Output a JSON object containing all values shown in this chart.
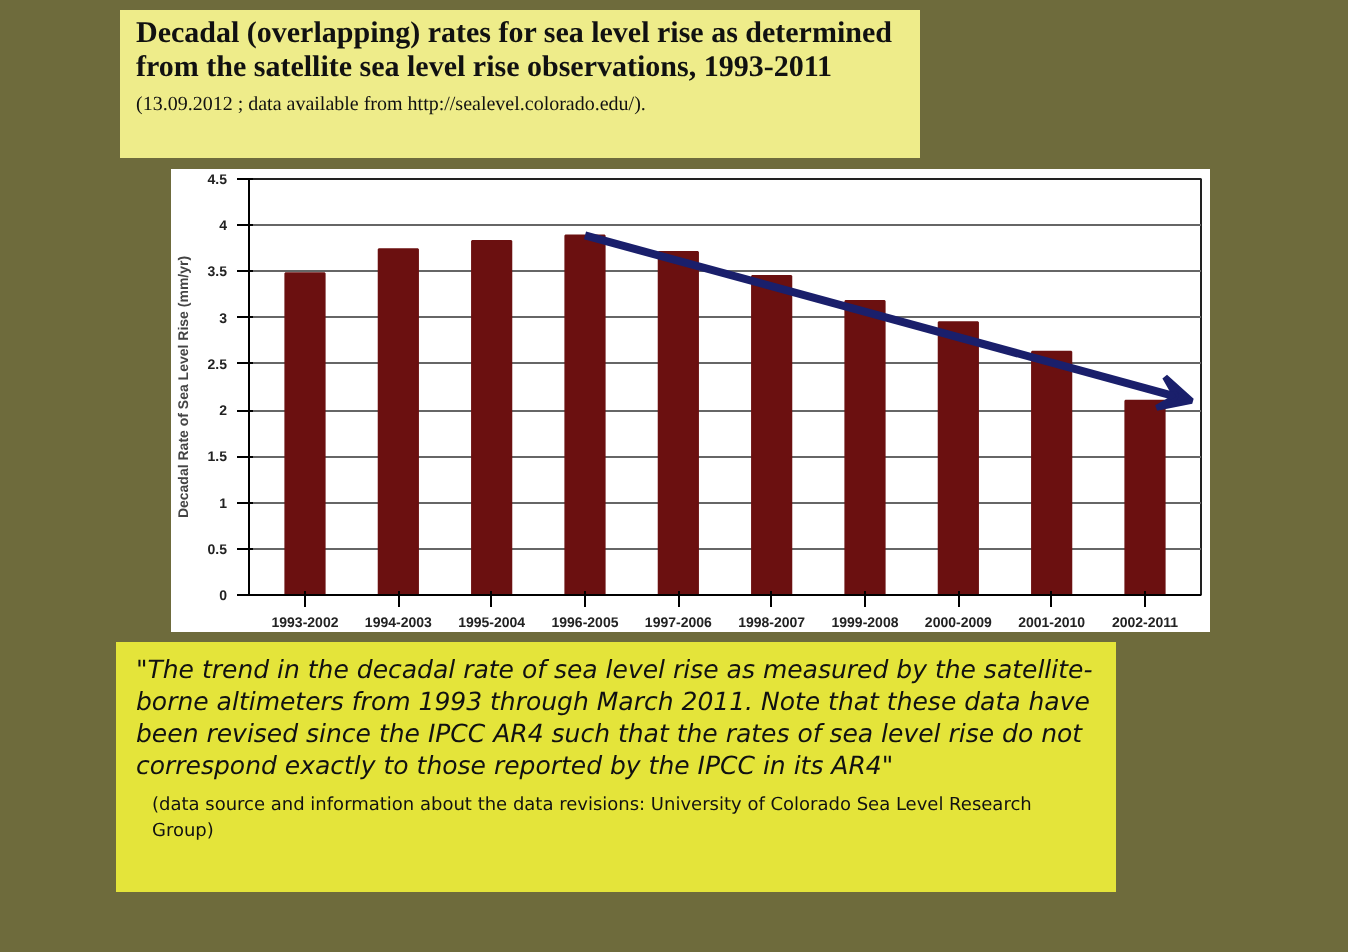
{
  "chart_data": {
    "type": "bar",
    "title": "Decadal (overlapping) rates for sea level rise as determined from the satellite sea level rise observations,   1993-2011",
    "subtitle": "(13.09.2012 ; data available from http://sealevel.colorado.edu/).",
    "ylabel": "Decadal Rate of Sea Level Rise (mm/yr)",
    "categories": [
      "1993-2002",
      "1994-2003",
      "1995-2004",
      "1996-2005",
      "1997-2006",
      "1998-2007",
      "1999-2008",
      "2000-2009",
      "2001-2010",
      "2002-2011"
    ],
    "values": [
      3.48,
      3.74,
      3.83,
      3.89,
      3.71,
      3.45,
      3.18,
      2.95,
      2.63,
      2.1
    ],
    "color": "#6b1010",
    "ylim": [
      0,
      4.5
    ],
    "yticks": [
      0,
      0.5,
      1,
      1.5,
      2,
      2.5,
      3,
      3.5,
      4,
      4.5
    ],
    "grid": "y",
    "annotations": [
      "\"The trend in the decadal rate of sea level rise as measured by the satellite-borne altimeters from 1993 through March 2011. Note that these data have been revised since the IPCC AR4 such that the rates of sea level rise do not correspond exactly to those reported by the IPCC in its AR4\"",
      "(data source and information about the data revisions: University of Colorado Sea Level Research Group)"
    ]
  }
}
